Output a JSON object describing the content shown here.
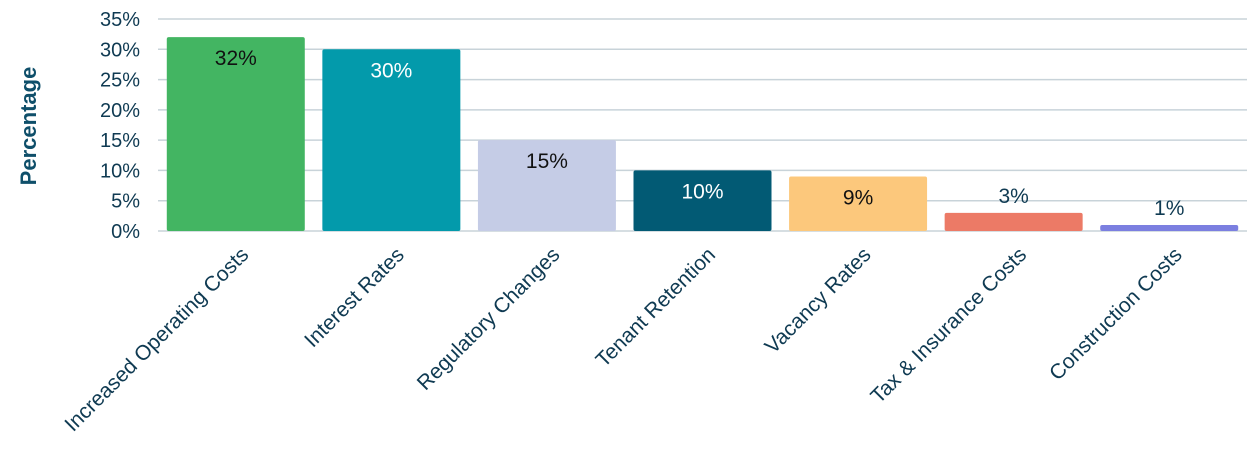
{
  "chart_data": {
    "type": "bar",
    "ylabel": "Percentage",
    "xlabel": "",
    "ylim": [
      0,
      35
    ],
    "yticks": [
      0,
      5,
      10,
      15,
      20,
      25,
      30,
      35
    ],
    "ytick_suffix": "%",
    "grid": true,
    "categories": [
      "Increased Operating Costs",
      "Interest Rates",
      "Regulatory Changes",
      "Tenant Retention",
      "Vacancy Rates",
      "Tax & Insurance Costs",
      "Construction Costs"
    ],
    "values": [
      32,
      30,
      15,
      10,
      9,
      3,
      1
    ],
    "data_labels": [
      "32%",
      "30%",
      "15%",
      "10%",
      "9%",
      "3%",
      "1%"
    ],
    "colors": [
      "#43b562",
      "#039aab",
      "#c5cce6",
      "#025a74",
      "#fcc87c",
      "#ec7a66",
      "#7b7fe0"
    ],
    "label_colors": [
      "#111111",
      "#ffffff",
      "#111111",
      "#ffffff",
      "#111111",
      "#0f3a52",
      "#0f3a52"
    ]
  }
}
